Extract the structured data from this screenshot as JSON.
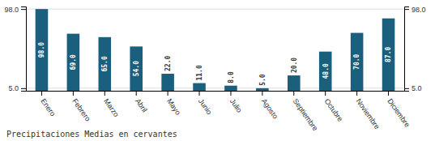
{
  "chart_data": {
    "type": "bar",
    "title": "Precipitaciones Medias en cervantes",
    "categories": [
      "Enero",
      "Febrero",
      "Marzo",
      "Abril",
      "Mayo",
      "Junio",
      "Julio",
      "Agosto",
      "Septiembre",
      "Octubre",
      "Noviembre",
      "Diciembre"
    ],
    "values": [
      98.0,
      69.0,
      65.0,
      54.0,
      22.0,
      11.0,
      8.0,
      5.0,
      20.0,
      48.0,
      70.0,
      87.0
    ],
    "value_labels": [
      "98.0",
      "69.0",
      "65.0",
      "54.0",
      "22.0",
      "11.0",
      "8.0",
      "5.0",
      "20.0",
      "48.0",
      "70.0",
      "87.0"
    ],
    "data_labels": true,
    "color": "#1b5f7e",
    "ylim": [
      2,
      101
    ],
    "yticks": [
      {
        "value": 5,
        "label": "5.0"
      },
      {
        "value": 98,
        "label": "98.0"
      }
    ],
    "y2lim": [
      2,
      101
    ],
    "y2ticks": [
      {
        "value": 5,
        "label": "5.0"
      },
      {
        "value": 98,
        "label": "98.0"
      }
    ],
    "grid": true
  }
}
